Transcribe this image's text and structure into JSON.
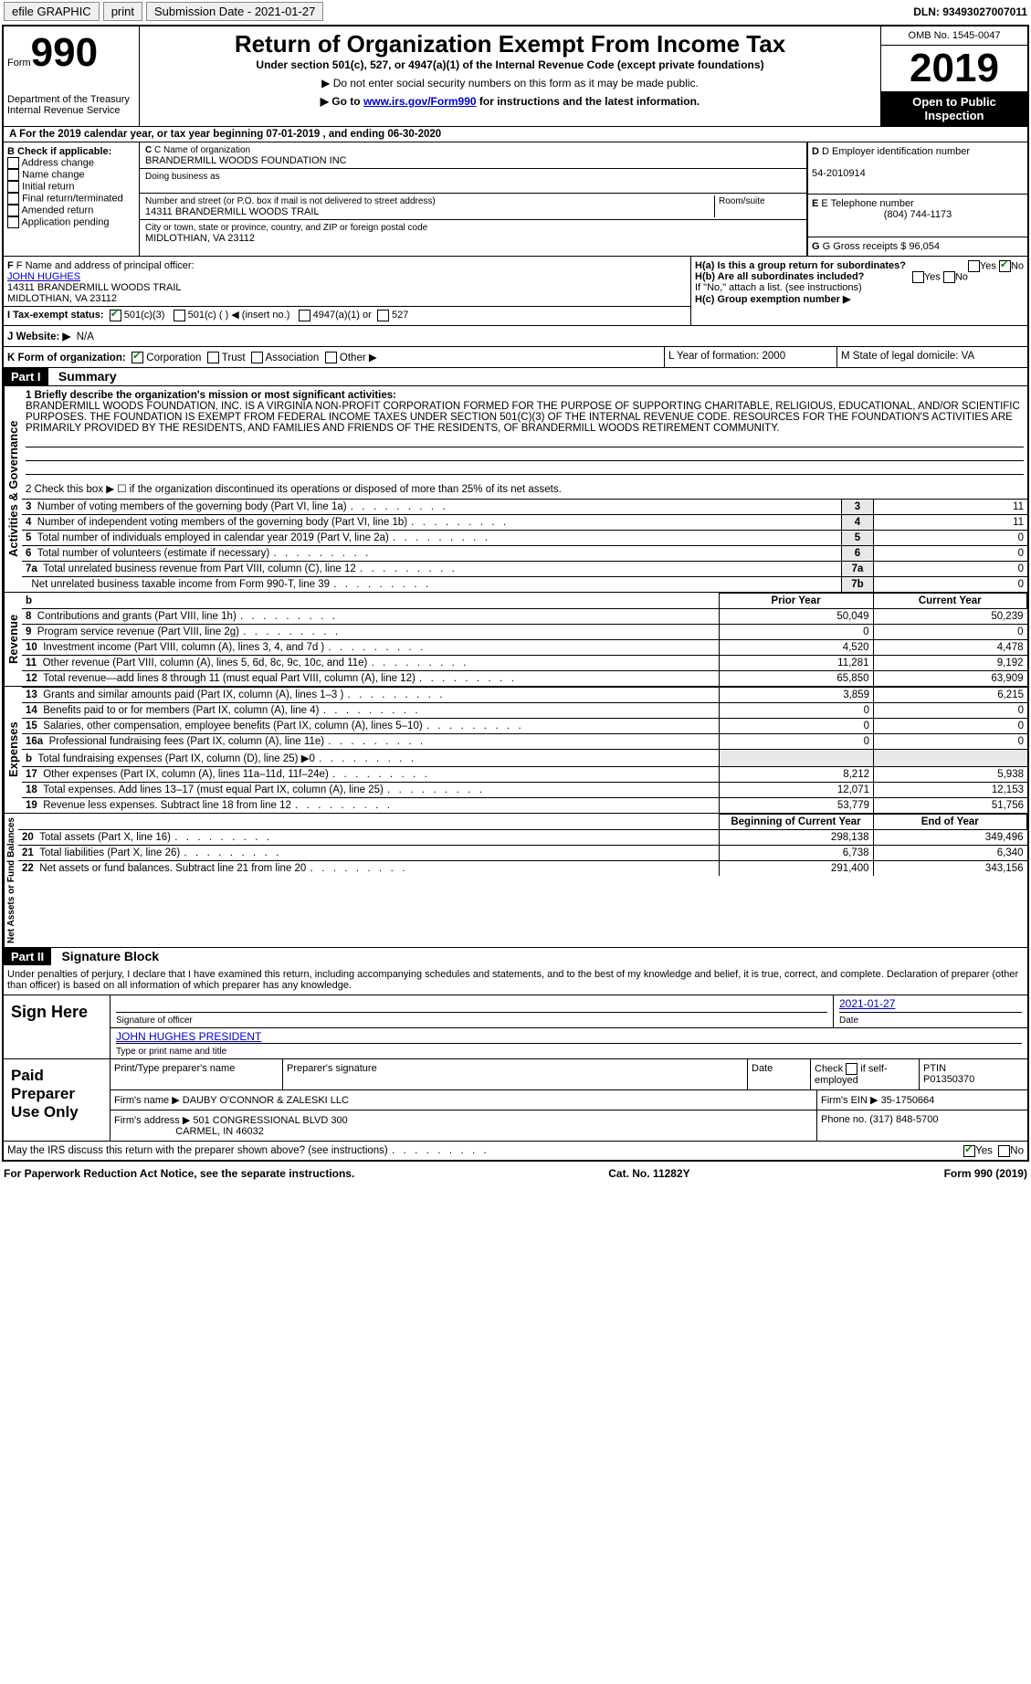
{
  "topbar": {
    "efile": "efile GRAPHIC",
    "print": "print",
    "sub_label": "Submission Date - 2021-01-27",
    "dln_label": "DLN: 93493027007011"
  },
  "header": {
    "form_word": "Form",
    "form_no": "990",
    "dept": "Department of the Treasury\nInternal Revenue Service",
    "title": "Return of Organization Exempt From Income Tax",
    "sub1": "Under section 501(c), 527, or 4947(a)(1) of the Internal Revenue Code (except private foundations)",
    "sub2": "▶ Do not enter social security numbers on this form as it may be made public.",
    "sub3_pre": "▶ Go to ",
    "sub3_link": "www.irs.gov/Form990",
    "sub3_post": " for instructions and the latest information.",
    "omb": "OMB No. 1545-0047",
    "year": "2019",
    "badge": "Open to Public Inspection"
  },
  "line_a": "A For the 2019 calendar year, or tax year beginning 07-01-2019   , and ending 06-30-2020",
  "box_b": {
    "title": "B Check if applicable:",
    "opts": [
      "Address change",
      "Name change",
      "Initial return",
      "Final return/terminated",
      "Amended return",
      "Application pending"
    ]
  },
  "box_c": {
    "label": "C Name of organization",
    "name": "BRANDERMILL WOODS FOUNDATION INC",
    "dba": "Doing business as",
    "addr_label": "Number and street (or P.O. box if mail is not delivered to street address)",
    "room": "Room/suite",
    "addr": "14311 BRANDERMILL WOODS TRAIL",
    "city_label": "City or town, state or province, country, and ZIP or foreign postal code",
    "city": "MIDLOTHIAN, VA  23112"
  },
  "box_d": {
    "label": "D Employer identification number",
    "val": "54-2010914"
  },
  "box_e": {
    "label": "E Telephone number",
    "val": "(804) 744-1173"
  },
  "box_g": {
    "label": "G Gross receipts $ 96,054"
  },
  "box_f": {
    "label": "F Name and address of principal officer:",
    "name": "JOHN HUGHES",
    "addr": "14311 BRANDERMILL WOODS TRAIL",
    "city": "MIDLOTHIAN, VA  23112"
  },
  "box_h": {
    "ha": "H(a)  Is this a group return for subordinates?",
    "hb": "H(b)  Are all subordinates included?",
    "hno": "If \"No,\" attach a list. (see instructions)",
    "hc": "H(c)  Group exemption number ▶",
    "yes": "Yes",
    "no": "No"
  },
  "box_i": {
    "label": "I   Tax-exempt status:",
    "o1": "501(c)(3)",
    "o2": "501(c) (  ) ◀ (insert no.)",
    "o3": "4947(a)(1) or",
    "o4": "527"
  },
  "box_j": {
    "label": "J   Website: ▶",
    "val": "N/A"
  },
  "box_k": {
    "label": "K Form of organization:",
    "o1": "Corporation",
    "o2": "Trust",
    "o3": "Association",
    "o4": "Other ▶"
  },
  "box_l": "L Year of formation: 2000",
  "box_m": "M State of legal domicile: VA",
  "part1": {
    "header": "Part I",
    "title": "Summary",
    "q1_label": "1  Briefly describe the organization's mission or most significant activities:",
    "q1_text": "BRANDERMILL WOODS FOUNDATION, INC. IS A VIRGINIA NON-PROFIT CORPORATION FORMED FOR THE PURPOSE OF SUPPORTING CHARITABLE, RELIGIOUS, EDUCATIONAL, AND/OR SCIENTIFIC PURPOSES. THE FOUNDATION IS EXEMPT FROM FEDERAL INCOME TAXES UNDER SECTION 501(C)(3) OF THE INTERNAL REVENUE CODE. RESOURCES FOR THE FOUNDATION'S ACTIVITIES ARE PRIMARILY PROVIDED BY THE RESIDENTS, AND FAMILIES AND FRIENDS OF THE RESIDENTS, OF BRANDERMILL WOODS RETIREMENT COMMUNITY.",
    "q2": "2   Check this box ▶ ☐  if the organization discontinued its operations or disposed of more than 25% of its net assets."
  },
  "sec_gov": "Activities & Governance",
  "sec_rev": "Revenue",
  "sec_exp": "Expenses",
  "sec_net": "Net Assets or Fund Balances",
  "gov_rows": [
    {
      "n": "3",
      "t": "Number of voting members of the governing body (Part VI, line 1a)",
      "b": "3",
      "v": "11"
    },
    {
      "n": "4",
      "t": "Number of independent voting members of the governing body (Part VI, line 1b)",
      "b": "4",
      "v": "11"
    },
    {
      "n": "5",
      "t": "Total number of individuals employed in calendar year 2019 (Part V, line 2a)",
      "b": "5",
      "v": "0"
    },
    {
      "n": "6",
      "t": "Total number of volunteers (estimate if necessary)",
      "b": "6",
      "v": "0"
    },
    {
      "n": "7a",
      "t": "Total unrelated business revenue from Part VIII, column (C), line 12",
      "b": "7a",
      "v": "0"
    },
    {
      "n": "",
      "t": "Net unrelated business taxable income from Form 990-T, line 39",
      "b": "7b",
      "v": "0"
    }
  ],
  "col_heads": {
    "b": "b",
    "prior": "Prior Year",
    "curr": "Current Year"
  },
  "rev_rows": [
    {
      "n": "8",
      "t": "Contributions and grants (Part VIII, line 1h)",
      "p": "50,049",
      "c": "50,239"
    },
    {
      "n": "9",
      "t": "Program service revenue (Part VIII, line 2g)",
      "p": "0",
      "c": "0"
    },
    {
      "n": "10",
      "t": "Investment income (Part VIII, column (A), lines 3, 4, and 7d )",
      "p": "4,520",
      "c": "4,478"
    },
    {
      "n": "11",
      "t": "Other revenue (Part VIII, column (A), lines 5, 6d, 8c, 9c, 10c, and 11e)",
      "p": "11,281",
      "c": "9,192"
    },
    {
      "n": "12",
      "t": "Total revenue—add lines 8 through 11 (must equal Part VIII, column (A), line 12)",
      "p": "65,850",
      "c": "63,909"
    }
  ],
  "exp_rows": [
    {
      "n": "13",
      "t": "Grants and similar amounts paid (Part IX, column (A), lines 1–3 )",
      "p": "3,859",
      "c": "6,215"
    },
    {
      "n": "14",
      "t": "Benefits paid to or for members (Part IX, column (A), line 4)",
      "p": "0",
      "c": "0"
    },
    {
      "n": "15",
      "t": "Salaries, other compensation, employee benefits (Part IX, column (A), lines 5–10)",
      "p": "0",
      "c": "0"
    },
    {
      "n": "16a",
      "t": "Professional fundraising fees (Part IX, column (A), line 11e)",
      "p": "0",
      "c": "0"
    },
    {
      "n": "b",
      "t": "Total fundraising expenses (Part IX, column (D), line 25) ▶0",
      "p": "",
      "c": ""
    },
    {
      "n": "17",
      "t": "Other expenses (Part IX, column (A), lines 11a–11d, 11f–24e)",
      "p": "8,212",
      "c": "5,938"
    },
    {
      "n": "18",
      "t": "Total expenses. Add lines 13–17 (must equal Part IX, column (A), line 25)",
      "p": "12,071",
      "c": "12,153"
    },
    {
      "n": "19",
      "t": "Revenue less expenses. Subtract line 18 from line 12",
      "p": "53,779",
      "c": "51,756"
    }
  ],
  "net_heads": {
    "prior": "Beginning of Current Year",
    "curr": "End of Year"
  },
  "net_rows": [
    {
      "n": "20",
      "t": "Total assets (Part X, line 16)",
      "p": "298,138",
      "c": "349,496"
    },
    {
      "n": "21",
      "t": "Total liabilities (Part X, line 26)",
      "p": "6,738",
      "c": "6,340"
    },
    {
      "n": "22",
      "t": "Net assets or fund balances. Subtract line 21 from line 20",
      "p": "291,400",
      "c": "343,156"
    }
  ],
  "part2": {
    "header": "Part II",
    "title": "Signature Block",
    "declaration": "Under penalties of perjury, I declare that I have examined this return, including accompanying schedules and statements, and to the best of my knowledge and belief, it is true, correct, and complete. Declaration of preparer (other than officer) is based on all information of which preparer has any knowledge."
  },
  "sign": {
    "here": "Sign Here",
    "sig_officer": "Signature of officer",
    "date": "Date",
    "date_val": "2021-01-27",
    "name_title": "JOHN HUGHES  PRESIDENT",
    "type_or_print": "Type or print name and title"
  },
  "paid": {
    "label": "Paid Preparer Use Only",
    "h1": "Print/Type preparer's name",
    "h2": "Preparer's signature",
    "h3": "Date",
    "h4_pre": "Check ",
    "h4_post": " if self-employed",
    "h5": "PTIN",
    "ptin": "P01350370",
    "firm_name_l": "Firm's name    ▶",
    "firm_name": "DAUBY O'CONNOR & ZALESKI LLC",
    "firm_ein_l": "Firm's EIN ▶",
    "firm_ein": "35-1750664",
    "firm_addr_l": "Firm's address ▶",
    "firm_addr1": "501 CONGRESSIONAL BLVD 300",
    "firm_addr2": "CARMEL, IN  46032",
    "phone_l": "Phone no.",
    "phone": "(317) 848-5700"
  },
  "discuss": "May the IRS discuss this return with the preparer shown above? (see instructions)",
  "footer": {
    "l": "For Paperwork Reduction Act Notice, see the separate instructions.",
    "m": "Cat. No. 11282Y",
    "r": "Form 990 (2019)"
  }
}
